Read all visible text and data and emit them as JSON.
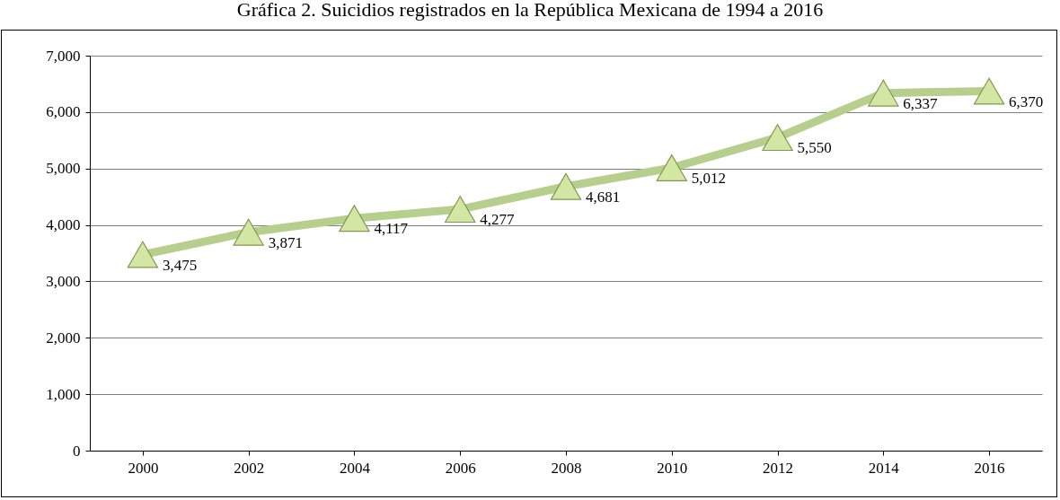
{
  "chart_data": {
    "type": "line",
    "title": "Gráfica 2. Suicidios registrados en la República Mexicana de 1994 a 2016",
    "categories": [
      "2000",
      "2002",
      "2004",
      "2006",
      "2008",
      "2010",
      "2012",
      "2014",
      "2016"
    ],
    "series": [
      {
        "color": "#b7cf8c",
        "values": [
          3475,
          3871,
          4117,
          4277,
          4681,
          5012,
          5550,
          6337,
          6370
        ],
        "value_labels": [
          "3,475",
          "3,871",
          "4,117",
          "4,277",
          "4,681",
          "5,012",
          "5,550",
          "6,337",
          "6,370"
        ]
      }
    ],
    "ylim": [
      0,
      7000
    ],
    "yticks": [
      {
        "value": 0,
        "label": "0"
      },
      {
        "value": 1000,
        "label": "1,000"
      },
      {
        "value": 2000,
        "label": "2,000"
      },
      {
        "value": 3000,
        "label": "3,000"
      },
      {
        "value": 4000,
        "label": "4,000"
      },
      {
        "value": 5000,
        "label": "5,000"
      },
      {
        "value": 6000,
        "label": "6,000"
      },
      {
        "value": 7000,
        "label": "7,000"
      }
    ],
    "grid": "y",
    "marker": "triangle",
    "line_style": "solid"
  }
}
